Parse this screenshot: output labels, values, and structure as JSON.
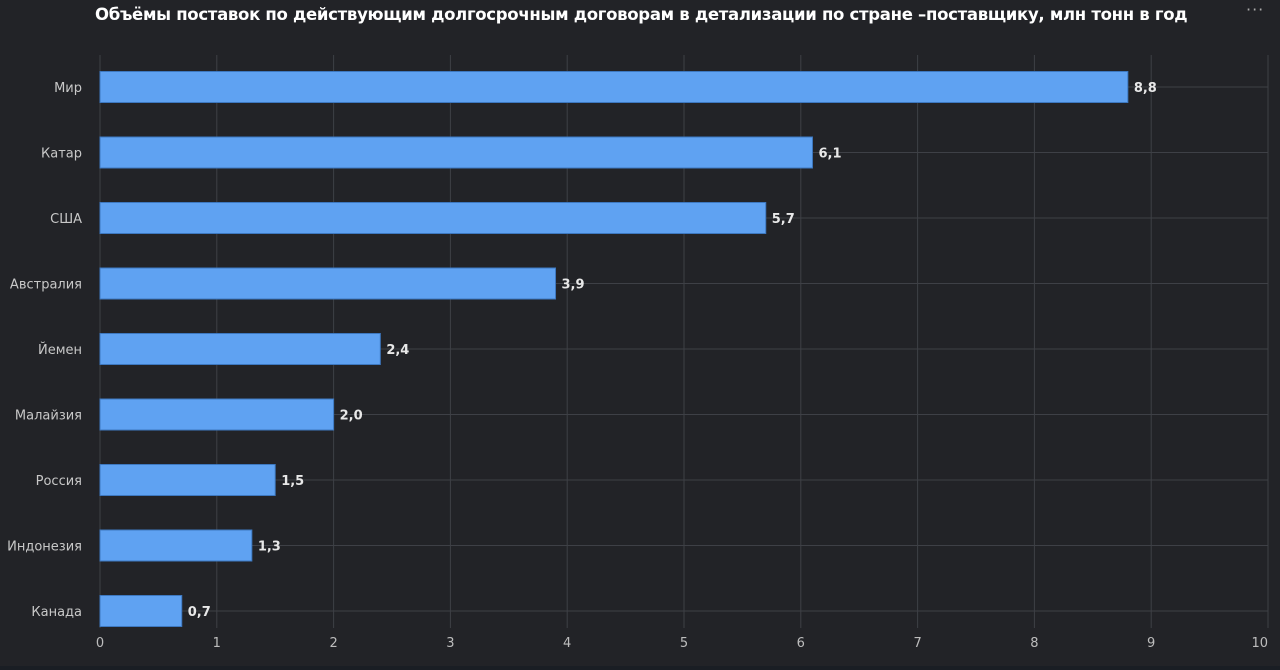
{
  "chart_data": {
    "type": "bar",
    "orientation": "horizontal",
    "title": "Объёмы поставок по действующим долгосрочным договорам в детализации по стране –поставщику, млн тонн в год",
    "categories": [
      "Мир",
      "Катар",
      "США",
      "Австралия",
      "Йемен",
      "Малайзия",
      "Россия",
      "Индонезия",
      "Канада"
    ],
    "values": [
      8.8,
      6.1,
      5.7,
      3.9,
      2.4,
      2.0,
      1.5,
      1.3,
      0.7
    ],
    "data_labels": [
      "8,8",
      "6,1",
      "5,7",
      "3,9",
      "2,4",
      "2,0",
      "1,5",
      "1,3",
      "0,7"
    ],
    "xlim": [
      0,
      10
    ],
    "xticks": [
      "0",
      "1",
      "2",
      "3",
      "4",
      "5",
      "6",
      "7",
      "8",
      "9",
      "10"
    ],
    "xlabel": "",
    "ylabel": "",
    "grid": true,
    "colors": {
      "bar": "#5fa2f2",
      "background": "#222327",
      "grid": "#3e4046",
      "text": "#c8c8c8"
    }
  },
  "menu": {
    "icon": "more-dots-icon",
    "label": "···"
  }
}
